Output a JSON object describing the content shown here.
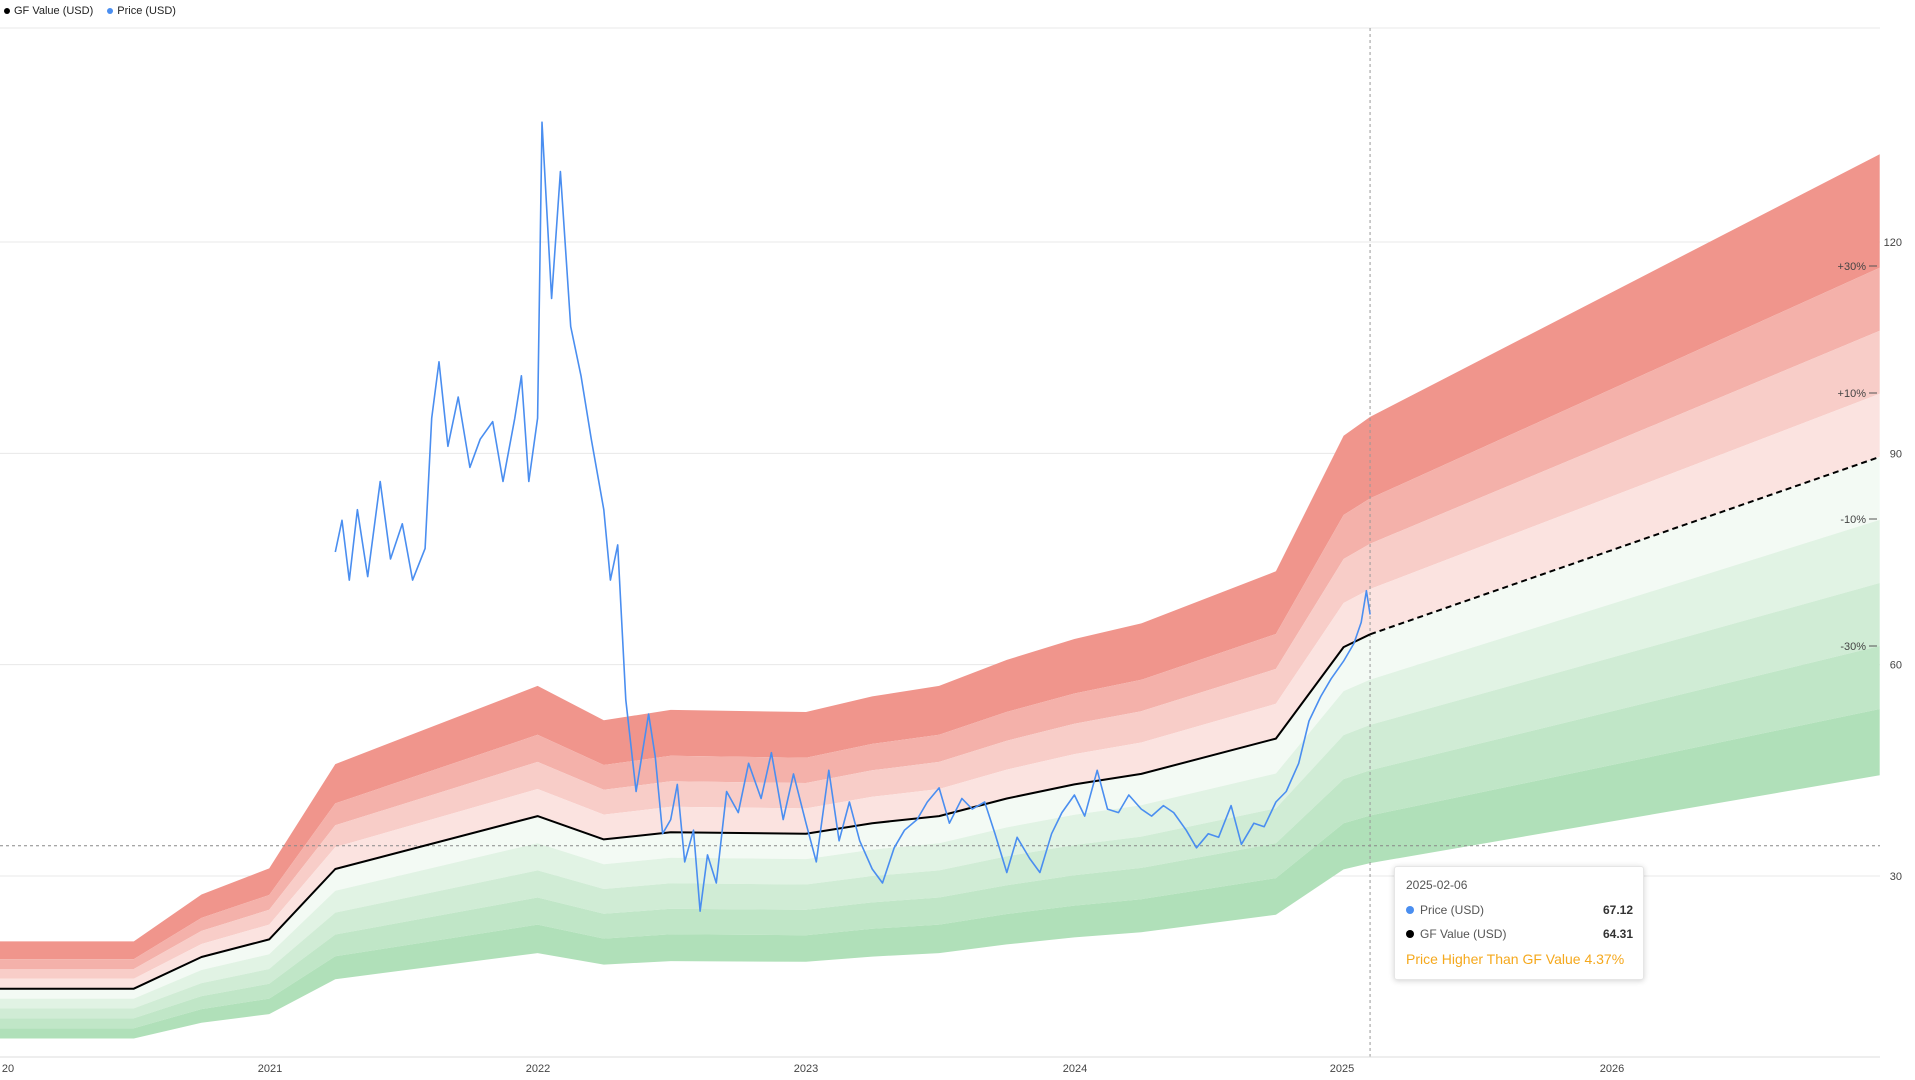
{
  "legend": {
    "gf_value": {
      "label": "GF Value (USD)",
      "color": "#000000"
    },
    "price": {
      "label": "Price (USD)",
      "color": "#4a8ef0"
    }
  },
  "tooltip": {
    "date": "2025-02-06",
    "price_label": "Price (USD)",
    "price_value": "67.12",
    "gf_label": "GF Value (USD)",
    "gf_value": "64.31",
    "status": "Price Higher Than GF Value 4.37%",
    "status_color": "#f5a81c"
  },
  "chart_data": {
    "type": "line",
    "x_tick_labels": [
      "20",
      "2021",
      "2022",
      "2023",
      "2024",
      "2025",
      "2026"
    ],
    "y_tick_labels": [
      "30",
      "60",
      "90",
      "120"
    ],
    "ylim": [
      1,
      147
    ],
    "band_labels": [
      "+30%",
      "+10%",
      "-10%",
      "-30%"
    ],
    "band_colors": {
      "over": [
        "#f0958c",
        "#f4b1aa",
        "#f8cdc8",
        "#fbe3e0",
        "#fdf2f1"
      ],
      "under": [
        "#f3faf4",
        "#e1f3e4",
        "#d0ecd5",
        "#c0e6c7",
        "#b0e0b9"
      ]
    },
    "reference_line": 34.3,
    "cursor_date": "2025-02-06",
    "series": [
      {
        "name": "GF Value (USD)",
        "color": "#000000",
        "points": [
          [
            "2020-01-01",
            14.0
          ],
          [
            "2020-07-01",
            14.0
          ],
          [
            "2020-10-01",
            18.5
          ],
          [
            "2021-01-01",
            21.0
          ],
          [
            "2021-04-01",
            31.0
          ],
          [
            "2022-01-01",
            38.5
          ],
          [
            "2022-04-01",
            35.2
          ],
          [
            "2022-07-01",
            36.2
          ],
          [
            "2023-01-01",
            36.0
          ],
          [
            "2023-04-01",
            37.5
          ],
          [
            "2023-07-01",
            38.5
          ],
          [
            "2023-10-01",
            41.0
          ],
          [
            "2024-01-01",
            43.0
          ],
          [
            "2024-04-01",
            44.5
          ],
          [
            "2024-10-01",
            49.5
          ],
          [
            "2025-01-01",
            62.5
          ],
          [
            "2025-02-06",
            64.31
          ]
        ]
      },
      {
        "name": "GF Value projection",
        "color": "#000000",
        "dashed": true,
        "points": [
          [
            "2025-02-06",
            64.31
          ],
          [
            "2026-12-31",
            89.5
          ]
        ]
      },
      {
        "name": "Price (USD)",
        "color": "#4a8ef0",
        "points": [
          [
            "2021-04-01",
            76.0
          ],
          [
            "2021-04-10",
            80.5
          ],
          [
            "2021-04-20",
            72.0
          ],
          [
            "2021-05-01",
            82.0
          ],
          [
            "2021-05-15",
            72.5
          ],
          [
            "2021-06-01",
            86.0
          ],
          [
            "2021-06-15",
            75.0
          ],
          [
            "2021-07-01",
            80.0
          ],
          [
            "2021-07-15",
            72.0
          ],
          [
            "2021-08-01",
            76.5
          ],
          [
            "2021-08-10",
            95.0
          ],
          [
            "2021-08-20",
            103.0
          ],
          [
            "2021-09-01",
            91.0
          ],
          [
            "2021-09-15",
            98.0
          ],
          [
            "2021-10-01",
            88.0
          ],
          [
            "2021-10-15",
            92.0
          ],
          [
            "2021-11-01",
            94.5
          ],
          [
            "2021-11-15",
            86.0
          ],
          [
            "2021-12-01",
            95.0
          ],
          [
            "2021-12-10",
            101.0
          ],
          [
            "2021-12-20",
            86.0
          ],
          [
            "2022-01-01",
            95.0
          ],
          [
            "2022-01-07",
            137.0
          ],
          [
            "2022-01-20",
            112.0
          ],
          [
            "2022-02-01",
            130.0
          ],
          [
            "2022-02-15",
            108.0
          ],
          [
            "2022-03-01",
            101.0
          ],
          [
            "2022-03-15",
            92.0
          ],
          [
            "2022-04-01",
            82.0
          ],
          [
            "2022-04-10",
            72.0
          ],
          [
            "2022-04-20",
            77.0
          ],
          [
            "2022-05-01",
            55.0
          ],
          [
            "2022-05-15",
            42.0
          ],
          [
            "2022-06-01",
            53.0
          ],
          [
            "2022-06-10",
            47.0
          ],
          [
            "2022-06-20",
            36.0
          ],
          [
            "2022-07-01",
            38.0
          ],
          [
            "2022-07-10",
            43.0
          ],
          [
            "2022-07-20",
            32.0
          ],
          [
            "2022-08-01",
            36.5
          ],
          [
            "2022-08-10",
            25.0
          ],
          [
            "2022-08-20",
            33.0
          ],
          [
            "2022-09-01",
            29.0
          ],
          [
            "2022-09-15",
            42.0
          ],
          [
            "2022-10-01",
            39.0
          ],
          [
            "2022-10-15",
            46.0
          ],
          [
            "2022-11-01",
            41.0
          ],
          [
            "2022-11-15",
            47.5
          ],
          [
            "2022-12-01",
            38.0
          ],
          [
            "2022-12-15",
            44.5
          ],
          [
            "2023-01-01",
            37.5
          ],
          [
            "2023-01-15",
            32.0
          ],
          [
            "2023-02-01",
            45.0
          ],
          [
            "2023-02-15",
            35.0
          ],
          [
            "2023-03-01",
            40.5
          ],
          [
            "2023-03-15",
            35.0
          ],
          [
            "2023-04-01",
            31.0
          ],
          [
            "2023-04-15",
            29.0
          ],
          [
            "2023-05-01",
            34.0
          ],
          [
            "2023-05-15",
            36.5
          ],
          [
            "2023-06-01",
            38.0
          ],
          [
            "2023-06-15",
            40.5
          ],
          [
            "2023-07-01",
            42.5
          ],
          [
            "2023-07-15",
            37.5
          ],
          [
            "2023-08-01",
            41.0
          ],
          [
            "2023-08-15",
            39.5
          ],
          [
            "2023-09-01",
            40.5
          ],
          [
            "2023-09-15",
            36.0
          ],
          [
            "2023-10-01",
            30.5
          ],
          [
            "2023-10-15",
            35.5
          ],
          [
            "2023-11-01",
            32.5
          ],
          [
            "2023-11-15",
            30.5
          ],
          [
            "2023-12-01",
            36.0
          ],
          [
            "2023-12-15",
            39.0
          ],
          [
            "2024-01-01",
            41.5
          ],
          [
            "2024-01-15",
            38.5
          ],
          [
            "2024-02-01",
            45.0
          ],
          [
            "2024-02-15",
            39.5
          ],
          [
            "2024-03-01",
            39.0
          ],
          [
            "2024-03-15",
            41.5
          ],
          [
            "2024-04-01",
            39.5
          ],
          [
            "2024-04-15",
            38.5
          ],
          [
            "2024-05-01",
            40.0
          ],
          [
            "2024-05-15",
            39.0
          ],
          [
            "2024-06-01",
            36.5
          ],
          [
            "2024-06-15",
            34.0
          ],
          [
            "2024-07-01",
            36.0
          ],
          [
            "2024-07-15",
            35.5
          ],
          [
            "2024-08-01",
            40.0
          ],
          [
            "2024-08-15",
            34.5
          ],
          [
            "2024-09-01",
            37.5
          ],
          [
            "2024-09-15",
            37.0
          ],
          [
            "2024-10-01",
            40.5
          ],
          [
            "2024-10-15",
            42.0
          ],
          [
            "2024-11-01",
            46.0
          ],
          [
            "2024-11-15",
            52.0
          ],
          [
            "2024-12-01",
            55.5
          ],
          [
            "2024-12-15",
            58.0
          ],
          [
            "2025-01-01",
            60.5
          ],
          [
            "2025-01-15",
            63.0
          ],
          [
            "2025-01-25",
            66.0
          ],
          [
            "2025-02-01",
            70.5
          ],
          [
            "2025-02-06",
            67.12
          ]
        ]
      }
    ],
    "grid": true,
    "legend_position": "top-left"
  }
}
